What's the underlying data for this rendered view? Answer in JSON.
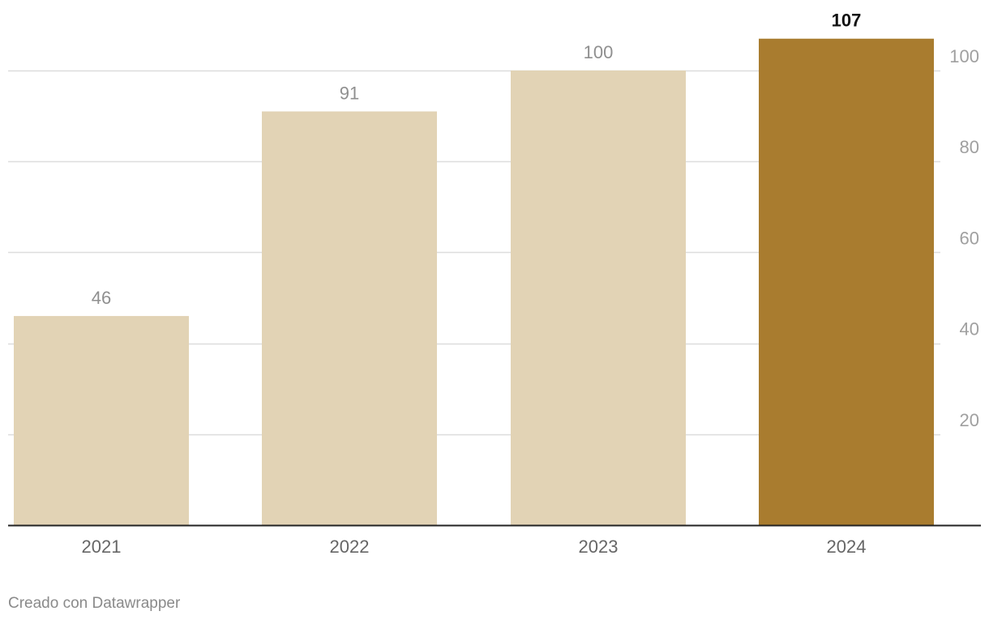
{
  "chart_data": {
    "type": "bar",
    "categories": [
      "2021",
      "2022",
      "2023",
      "2024"
    ],
    "values": [
      46,
      91,
      100,
      107
    ],
    "data_labels": [
      "46",
      "91",
      "100",
      "107"
    ],
    "y_ticks": [
      "20",
      "40",
      "60",
      "80",
      "100"
    ],
    "ylim": [
      0,
      107
    ],
    "y_axis_side": "right",
    "grid": true,
    "highlight_index": 3,
    "colors": {
      "bar": "#e2d3b5",
      "bar_highlight": "#a97c2f",
      "label": "#8f8f8f",
      "label_highlight": "#111111",
      "grid": "#dddddd",
      "baseline": "#222222",
      "tick": "#a0a0a0",
      "category": "#666666"
    }
  },
  "footer": {
    "credit": "Creado con Datawrapper"
  }
}
